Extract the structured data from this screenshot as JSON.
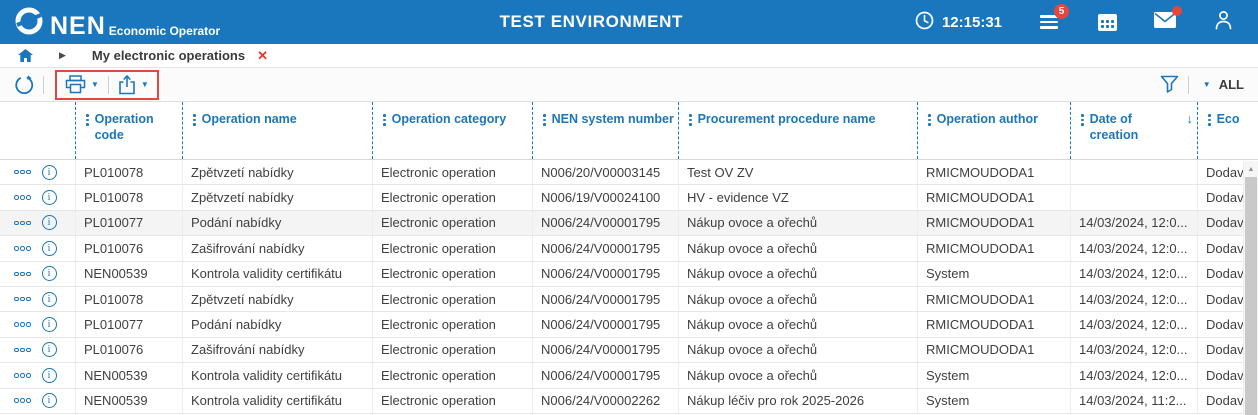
{
  "header": {
    "logo_text": "NEN",
    "logo_subtext": "Economic Operator",
    "title": "TEST ENVIRONMENT",
    "time": "12:15:31",
    "tasks_badge": "5"
  },
  "breadcrumb": {
    "current_tab": "My electronic operations"
  },
  "toolbar": {
    "filter_selected": "ALL"
  },
  "table": {
    "columns": [
      {
        "label": "Operation code"
      },
      {
        "label": "Operation name"
      },
      {
        "label": "Operation category"
      },
      {
        "label": "NEN system number"
      },
      {
        "label": "Procurement procedure name"
      },
      {
        "label": "Operation author"
      },
      {
        "label": "Date of creation",
        "sort": "desc"
      },
      {
        "label": "Eco"
      }
    ],
    "highlighted_row_index": 2,
    "rows": [
      {
        "code": "PL010078",
        "name": "Zpětvzetí nabídky",
        "category": "Electronic operation",
        "nen_number": "N006/20/V00003145",
        "procurement": "Test OV ZV",
        "author": "RMICMOUDODA1",
        "created": "",
        "eco": "Dodav"
      },
      {
        "code": "PL010078",
        "name": "Zpětvzetí nabídky",
        "category": "Electronic operation",
        "nen_number": "N006/19/V00024100",
        "procurement": "HV - evidence VZ",
        "author": "RMICMOUDODA1",
        "created": "",
        "eco": "Dodav"
      },
      {
        "code": "PL010077",
        "name": "Podání nabídky",
        "category": "Electronic operation",
        "nen_number": "N006/24/V00001795",
        "procurement": "Nákup ovoce a ořechů",
        "author": "RMICMOUDODA1",
        "created": "14/03/2024, 12:0...",
        "eco": "Dodav"
      },
      {
        "code": "PL010076",
        "name": "Zašifrování nabídky",
        "category": "Electronic operation",
        "nen_number": "N006/24/V00001795",
        "procurement": "Nákup ovoce a ořechů",
        "author": "RMICMOUDODA1",
        "created": "14/03/2024, 12:0...",
        "eco": "Dodav"
      },
      {
        "code": "NEN00539",
        "name": "Kontrola validity certifikátu",
        "category": "Electronic operation",
        "nen_number": "N006/24/V00001795",
        "procurement": "Nákup ovoce a ořechů",
        "author": "System",
        "created": "14/03/2024, 12:0...",
        "eco": "Dodav"
      },
      {
        "code": "PL010078",
        "name": "Zpětvzetí nabídky",
        "category": "Electronic operation",
        "nen_number": "N006/24/V00001795",
        "procurement": "Nákup ovoce a ořechů",
        "author": "RMICMOUDODA1",
        "created": "14/03/2024, 12:0...",
        "eco": "Dodav"
      },
      {
        "code": "PL010077",
        "name": "Podání nabídky",
        "category": "Electronic operation",
        "nen_number": "N006/24/V00001795",
        "procurement": "Nákup ovoce a ořechů",
        "author": "RMICMOUDODA1",
        "created": "14/03/2024, 12:0...",
        "eco": "Dodav"
      },
      {
        "code": "PL010076",
        "name": "Zašifrování nabídky",
        "category": "Electronic operation",
        "nen_number": "N006/24/V00001795",
        "procurement": "Nákup ovoce a ořechů",
        "author": "RMICMOUDODA1",
        "created": "14/03/2024, 12:0...",
        "eco": "Dodav"
      },
      {
        "code": "NEN00539",
        "name": "Kontrola validity certifikátu",
        "category": "Electronic operation",
        "nen_number": "N006/24/V00001795",
        "procurement": "Nákup ovoce a ořechů",
        "author": "System",
        "created": "14/03/2024, 12:0...",
        "eco": "Dodav"
      },
      {
        "code": "NEN00539",
        "name": "Kontrola validity certifikátu",
        "category": "Electronic operation",
        "nen_number": "N006/24/V00002262",
        "procurement": "Nákup léčiv pro rok 2025-2026",
        "author": "System",
        "created": "14/03/2024, 11:2...",
        "eco": "Dodav"
      }
    ]
  },
  "icons": {
    "clock": "clock-icon",
    "tasks": "tasks-icon",
    "calendar": "calendar-icon",
    "mail": "mail-icon",
    "user": "user-icon",
    "home": "home-icon",
    "refresh": "refresh-icon",
    "print": "print-icon",
    "export": "export-icon",
    "filter": "filter-icon",
    "sort_desc": "↓"
  },
  "colors": {
    "accent_blue": "#1A77BD",
    "badge_red": "#E8453C",
    "annotation_red": "#E0493D",
    "highlight_row": "#f4f4f4"
  }
}
